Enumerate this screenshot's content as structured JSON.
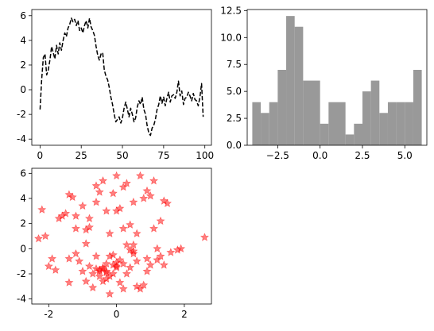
{
  "chart_data": [
    {
      "type": "line",
      "style": "dashed",
      "color": "#000000",
      "xlim": [
        -5,
        104
      ],
      "ylim": [
        -4.5,
        6.5
      ],
      "xticks": [
        0,
        25,
        50,
        75,
        100
      ],
      "yticks": [
        -4,
        -2,
        0,
        2,
        4,
        6
      ],
      "x": [
        0,
        1,
        2,
        3,
        4,
        5,
        6,
        7,
        8,
        9,
        10,
        11,
        12,
        13,
        14,
        15,
        16,
        17,
        18,
        19,
        20,
        21,
        22,
        23,
        24,
        25,
        26,
        27,
        28,
        29,
        30,
        31,
        32,
        33,
        34,
        35,
        36,
        37,
        38,
        39,
        40,
        41,
        42,
        43,
        44,
        45,
        46,
        47,
        48,
        49,
        50,
        51,
        52,
        53,
        54,
        55,
        56,
        57,
        58,
        59,
        60,
        61,
        62,
        63,
        64,
        65,
        66,
        67,
        68,
        69,
        70,
        71,
        72,
        73,
        74,
        75,
        76,
        77,
        78,
        79,
        80,
        81,
        82,
        83,
        84,
        85,
        86,
        87,
        88,
        89,
        90,
        91,
        92,
        93,
        94,
        95,
        96,
        97,
        98,
        99
      ],
      "y": [
        -1.6,
        0.8,
        2.6,
        2.9,
        1.2,
        1.6,
        2.4,
        3.5,
        3.0,
        2.5,
        3.6,
        2.9,
        3.8,
        3.2,
        4.0,
        4.6,
        4.3,
        5.0,
        5.3,
        5.8,
        5.5,
        5.7,
        5.2,
        5.6,
        4.8,
        5.0,
        4.6,
        5.2,
        5.6,
        5.0,
        5.8,
        5.1,
        4.8,
        4.4,
        3.5,
        2.8,
        2.4,
        2.9,
        3.0,
        1.6,
        1.1,
        0.8,
        0.2,
        -0.6,
        -1.2,
        -2.0,
        -2.6,
        -2.4,
        -2.2,
        -2.7,
        -2.3,
        -1.5,
        -1.0,
        -1.6,
        -2.2,
        -1.5,
        -2.0,
        -2.6,
        -2.3,
        -1.4,
        -0.9,
        -1.2,
        -0.6,
        -1.6,
        -2.0,
        -2.9,
        -3.5,
        -3.7,
        -3.1,
        -2.9,
        -2.4,
        -1.6,
        -1.2,
        -0.5,
        -1.1,
        -0.6,
        -1.3,
        -0.7,
        -0.2,
        -1.0,
        -0.5,
        -0.4,
        -0.7,
        -0.2,
        0.7,
        -0.5,
        -0.1,
        -1.2,
        -0.7,
        -0.6,
        -0.2,
        -0.5,
        -0.9,
        -0.3,
        -0.8,
        -0.9,
        -1.3,
        -0.6,
        0.5,
        -2.2
      ]
    },
    {
      "type": "bar",
      "subtype": "histogram",
      "color": "#999999",
      "bin_start": -4.0,
      "bin_width": 0.5,
      "values": [
        4,
        3,
        4,
        7,
        12,
        11,
        6,
        6,
        2,
        4,
        4,
        1,
        2,
        5,
        6,
        3,
        4,
        4,
        4,
        7
      ],
      "xlim": [
        -4.3,
        6.3
      ],
      "ylim": [
        0,
        12.6
      ],
      "xticks": [
        -2.5,
        0.0,
        2.5,
        5.0
      ],
      "xtick_labels": [
        "−2.5",
        "0.0",
        "2.5",
        "5.0"
      ],
      "yticks": [
        0.0,
        2.5,
        5.0,
        7.5,
        10.0,
        12.5
      ],
      "ytick_labels": [
        "0.0",
        "2.5",
        "5.0",
        "7.5",
        "10.0",
        "12.5"
      ]
    },
    {
      "type": "scatter",
      "marker": "star",
      "color": "#ff0000",
      "alpha": 0.5,
      "xlim": [
        -2.5,
        2.8
      ],
      "ylim": [
        -4.4,
        6.4
      ],
      "xticks": [
        -2,
        0,
        2
      ],
      "yticks": [
        -4,
        -2,
        0,
        2,
        4,
        6
      ],
      "x": [
        -2.3,
        -2.2,
        -2.0,
        -2.1,
        -1.9,
        -1.8,
        -1.7,
        -1.6,
        -1.5,
        -1.4,
        -1.4,
        -1.3,
        -1.2,
        -1.2,
        -1.1,
        -1.0,
        -1.0,
        -0.9,
        -0.9,
        -0.8,
        -0.8,
        -0.7,
        -0.7,
        -0.6,
        -0.6,
        -0.6,
        -0.5,
        -0.5,
        -0.5,
        -0.4,
        -0.4,
        -0.4,
        -0.3,
        -0.3,
        -0.3,
        -0.2,
        -0.2,
        -0.2,
        -0.1,
        -0.1,
        -0.1,
        0.0,
        0.0,
        0.0,
        0.1,
        0.1,
        0.1,
        0.2,
        0.2,
        0.2,
        0.3,
        0.3,
        0.3,
        0.4,
        0.4,
        0.5,
        0.5,
        0.5,
        0.6,
        0.6,
        0.7,
        0.7,
        0.8,
        0.8,
        0.9,
        0.9,
        1.0,
        1.0,
        1.1,
        1.1,
        1.2,
        1.2,
        1.3,
        1.3,
        1.4,
        1.5,
        1.6,
        1.8,
        1.9,
        2.6,
        -1.2,
        -0.3,
        0.0,
        -0.5,
        -0.8,
        0.5,
        -1.4,
        0.2,
        -0.6,
        -0.3,
        0.4,
        -0.9,
        0.0,
        0.6,
        -0.1,
        0.9,
        -0.4,
        1.4,
        -0.2
      ],
      "y": [
        0.8,
        3.1,
        -1.4,
        1.0,
        -0.8,
        -1.7,
        2.4,
        2.6,
        2.8,
        4.3,
        -2.7,
        4.1,
        1.6,
        -0.4,
        -1.0,
        3.4,
        -1.8,
        0.4,
        -2.6,
        2.4,
        -1.4,
        -2.0,
        -3.1,
        5.0,
        -1.6,
        3.7,
        -2.2,
        -1.8,
        4.5,
        -1.6,
        -1.5,
        5.4,
        3.0,
        -2.4,
        -1.2,
        -3.6,
        -0.6,
        -2.2,
        -0.5,
        -2.0,
        -1.3,
        5.8,
        -1.1,
        3.0,
        -0.9,
        -2.7,
        3.2,
        1.6,
        -1.2,
        -3.2,
        0.3,
        -2.0,
        5.2,
        1.9,
        -1.5,
        0.3,
        -0.2,
        3.7,
        1.2,
        -1.0,
        5.8,
        -3.2,
        4.0,
        -2.9,
        4.6,
        -0.8,
        4.2,
        -1.3,
        5.4,
        1.6,
        0.0,
        -0.9,
        2.2,
        -0.6,
        3.8,
        3.6,
        -0.3,
        -0.1,
        0.0,
        0.9,
        2.6,
        -1.8,
        -1.4,
        -1.7,
        1.7,
        -0.4,
        -0.8,
        4.9,
        -0.6,
        -1.9,
        -0.1,
        1.5,
        -1.5,
        -3.0,
        4.4,
        -1.8,
        -2.6,
        -1.3,
        1.2
      ]
    }
  ]
}
